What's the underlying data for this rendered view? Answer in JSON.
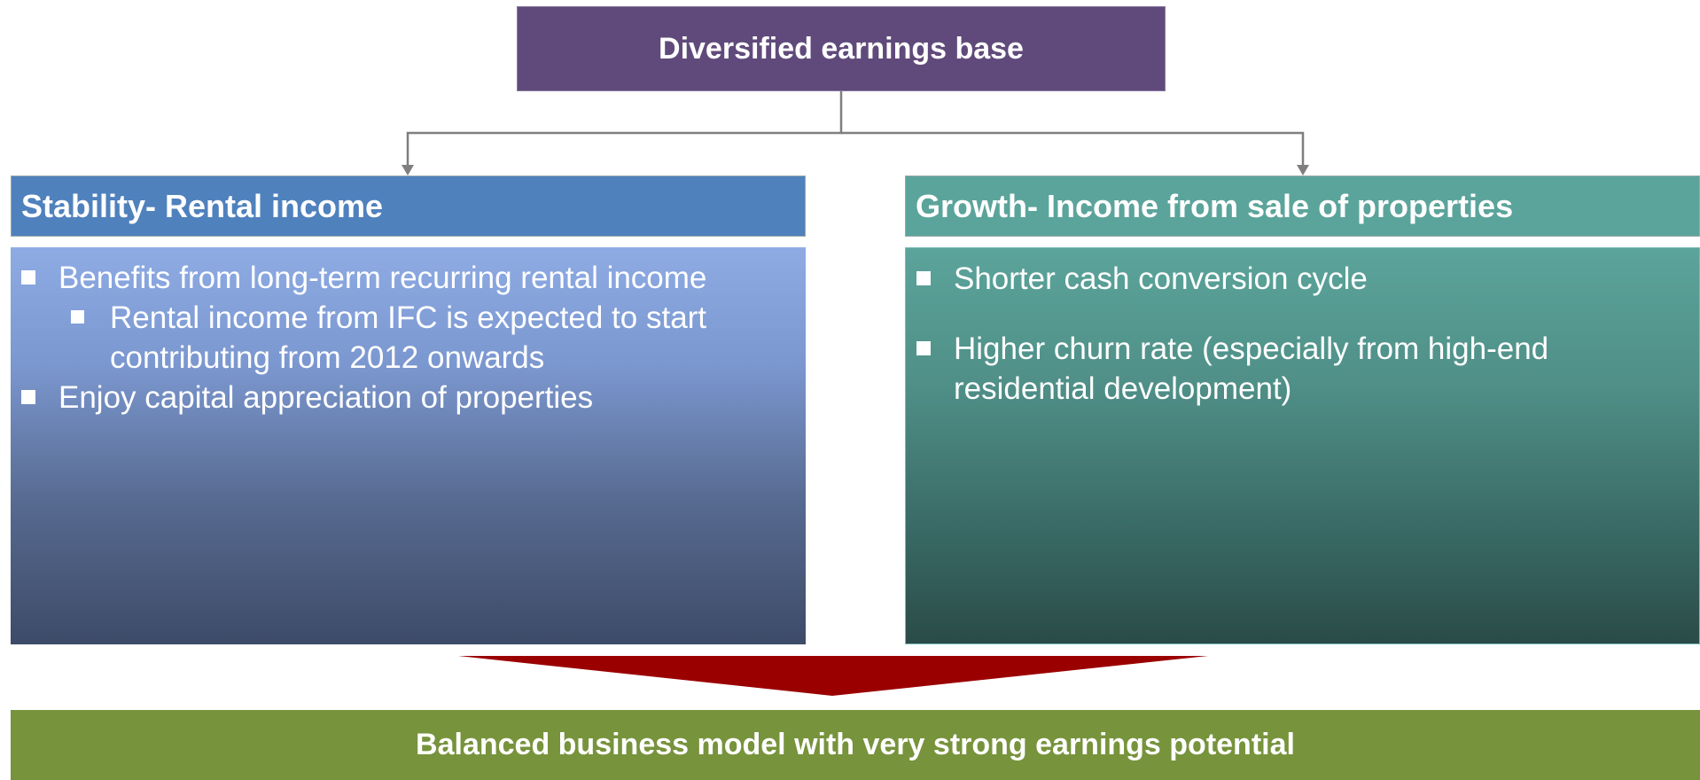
{
  "title": "Diversified earnings base",
  "left": {
    "heading": "Stability- Rental income",
    "items": [
      {
        "text": "Benefits from long-term recurring rental income",
        "level": 1
      },
      {
        "text": "Rental income from IFC is expected to start contributing from 2012 onwards",
        "level": 2
      },
      {
        "text": "Enjoy capital appreciation of properties",
        "level": 1
      }
    ]
  },
  "right": {
    "heading": "Growth- Income from sale of properties",
    "items": [
      {
        "text": "Shorter cash conversion cycle",
        "level": 1
      },
      {
        "text": "Higher churn rate (especially from high-end residential development)",
        "level": 1
      }
    ]
  },
  "conclusion": "Balanced business model with very strong earnings potential"
}
